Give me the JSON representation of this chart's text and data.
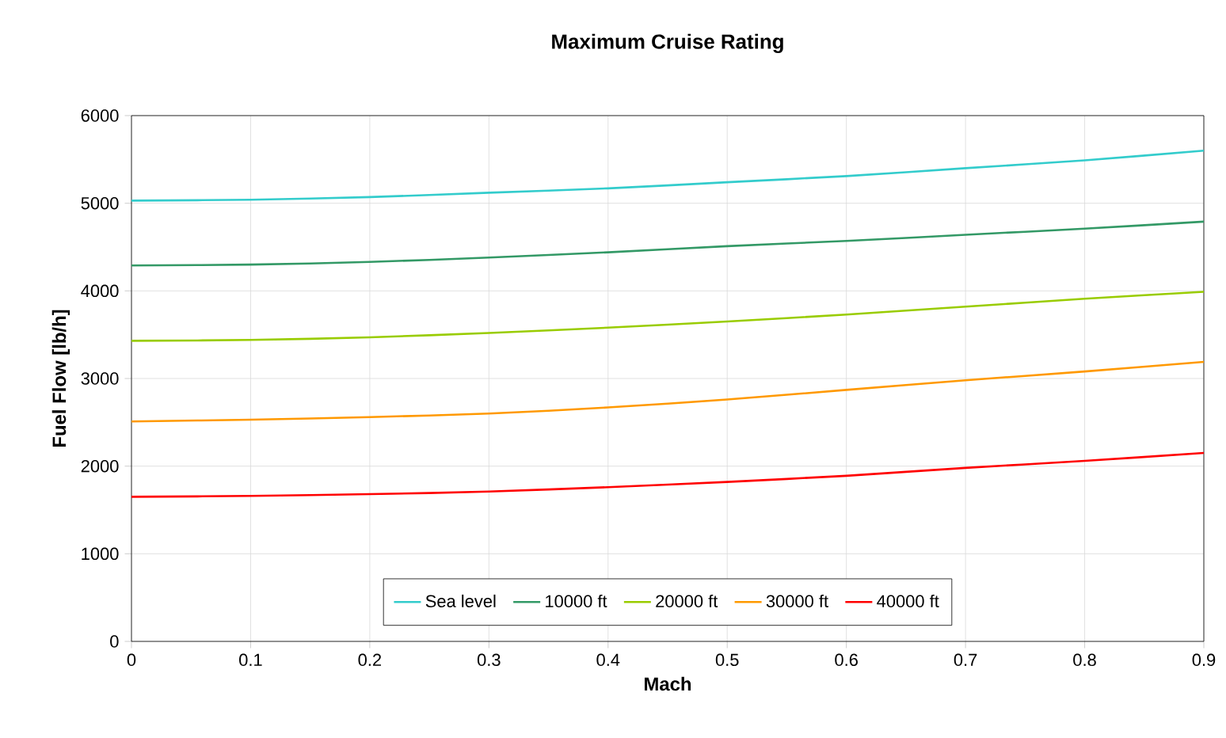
{
  "chart_data": {
    "type": "line",
    "title": "Maximum Cruise Rating",
    "xlabel": "Mach",
    "ylabel": "Fuel Flow [lb/h]",
    "x": [
      0,
      0.1,
      0.2,
      0.3,
      0.4,
      0.5,
      0.6,
      0.7,
      0.8,
      0.9
    ],
    "series": [
      {
        "name": "Sea level",
        "color": "#33cccc",
        "values": [
          5030,
          5040,
          5070,
          5120,
          5170,
          5240,
          5310,
          5400,
          5490,
          5600
        ]
      },
      {
        "name": "10000 ft",
        "color": "#339966",
        "values": [
          4290,
          4300,
          4330,
          4380,
          4440,
          4510,
          4570,
          4640,
          4710,
          4790
        ]
      },
      {
        "name": "20000 ft",
        "color": "#99cc00",
        "values": [
          3430,
          3440,
          3470,
          3520,
          3580,
          3650,
          3730,
          3820,
          3910,
          3990
        ]
      },
      {
        "name": "30000 ft",
        "color": "#ff9900",
        "values": [
          2510,
          2530,
          2560,
          2600,
          2670,
          2760,
          2870,
          2980,
          3080,
          3190
        ]
      },
      {
        "name": "40000 ft",
        "color": "#ff0000",
        "values": [
          1650,
          1660,
          1680,
          1710,
          1760,
          1820,
          1890,
          1980,
          2060,
          2150
        ]
      }
    ],
    "xlim": [
      0,
      0.9
    ],
    "ylim": [
      0,
      6000
    ],
    "xticks": [
      0,
      0.1,
      0.2,
      0.3,
      0.4,
      0.5,
      0.6,
      0.7,
      0.8,
      0.9
    ],
    "yticks": [
      0,
      1000,
      2000,
      3000,
      4000,
      5000,
      6000
    ],
    "grid": true,
    "legend": "bottom",
    "marker": "none",
    "line_style": "solid"
  }
}
